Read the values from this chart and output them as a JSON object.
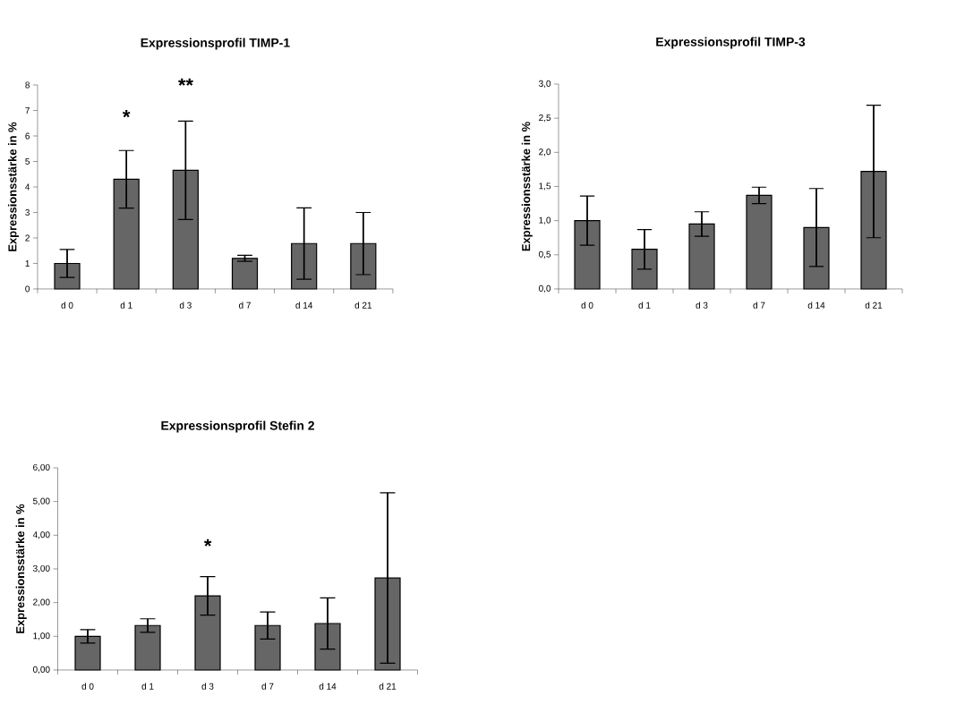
{
  "chart_data": [
    {
      "type": "bar",
      "title": "Expressionsprofil TIMP-1",
      "ylabel": "Expressionsstärke in %",
      "categories": [
        "d 0",
        "d 1",
        "d 3",
        "d 7",
        "d 14",
        "d 21"
      ],
      "color": "#666666",
      "values": [
        1.0,
        4.3,
        4.65,
        1.2,
        1.78,
        1.78
      ],
      "errors": [
        0.55,
        1.13,
        1.93,
        0.12,
        1.4,
        1.22
      ],
      "ylim": [
        0,
        8
      ],
      "yticks": [
        0,
        1,
        2,
        3,
        4,
        5,
        6,
        7,
        8
      ],
      "grid": false,
      "annotations": [
        "*",
        "**"
      ]
    },
    {
      "type": "bar",
      "title": "Expressionsprofil TIMP-3",
      "ylabel": "Expressionsstärke in %",
      "categories": [
        "d 0",
        "d 1",
        "d 3",
        "d 7",
        "d 14",
        "d 21"
      ],
      "color": "#666666",
      "values": [
        1.0,
        0.58,
        0.95,
        1.37,
        0.9,
        1.72
      ],
      "errors": [
        0.36,
        0.29,
        0.18,
        0.12,
        0.57,
        0.97
      ],
      "ylim": [
        0,
        3
      ],
      "yticks": [
        {
          "value": 0,
          "label": "0,0"
        },
        {
          "value": 0.5,
          "label": "0,5"
        },
        {
          "value": 1,
          "label": "1,0"
        },
        {
          "value": 1.5,
          "label": "1,5"
        },
        {
          "value": 2,
          "label": "2,0"
        },
        {
          "value": 2.5,
          "label": "2,5"
        },
        {
          "value": 3,
          "label": "3,0"
        }
      ],
      "grid": false
    },
    {
      "type": "bar",
      "title": "Expressionsprofil Stefin 2",
      "ylabel": "Expressionsstärke in %",
      "categories": [
        "d 0",
        "d 1",
        "d 3",
        "d 7",
        "d 14",
        "d 21"
      ],
      "color": "#666666",
      "values": [
        1.0,
        1.32,
        2.2,
        1.32,
        1.38,
        2.73
      ],
      "errors": [
        0.2,
        0.2,
        0.57,
        0.4,
        0.76,
        2.53
      ],
      "ylim": [
        0,
        6
      ],
      "yticks": [
        {
          "value": 0,
          "label": "0,00"
        },
        {
          "value": 1,
          "label": "1,00"
        },
        {
          "value": 2,
          "label": "2,00"
        },
        {
          "value": 3,
          "label": "3,00"
        },
        {
          "value": 4,
          "label": "4,00"
        },
        {
          "value": 5,
          "label": "5,00"
        },
        {
          "value": 6,
          "label": "6,00"
        }
      ],
      "grid": false,
      "annotations": [
        "*"
      ]
    }
  ]
}
